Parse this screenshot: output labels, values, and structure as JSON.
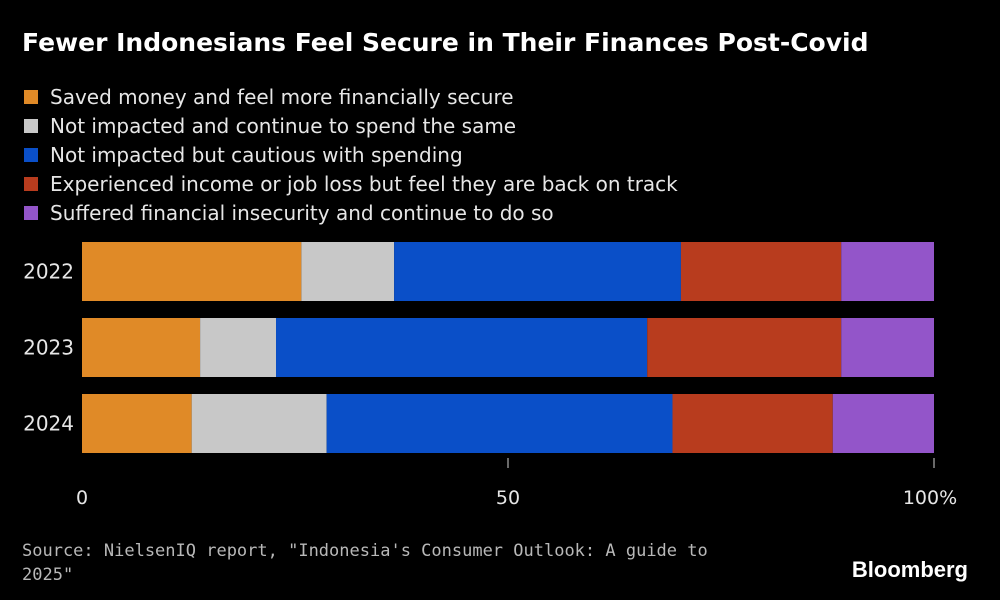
{
  "page": {
    "title": "Fewer Indonesians Feel Secure in Their Finances Post-Covid",
    "source": "Source: NielsenIQ report, \"Indonesia's Consumer Outlook: A guide to 2025\"",
    "brand": "Bloomberg"
  },
  "legend": [
    {
      "label": "Saved money and feel more financially secure",
      "color": "#e08a27"
    },
    {
      "label": "Not impacted and continue to spend the same",
      "color": "#c8c8c8"
    },
    {
      "label": "Not impacted but cautious with spending",
      "color": "#0a4fc8"
    },
    {
      "label": "Experienced income or job loss but feel they are back on track",
      "color": "#b83c1e"
    },
    {
      "label": "Suffered financial insecurity and continue to do so",
      "color": "#9355c9"
    }
  ],
  "chart_data": {
    "type": "bar",
    "orientation": "horizontal",
    "stacked": true,
    "categories": [
      "2022",
      "2023",
      "2024"
    ],
    "series": [
      {
        "name": "Saved money and feel more financially secure",
        "color": "#e08a27",
        "values": [
          26,
          14,
          13
        ]
      },
      {
        "name": "Not impacted and continue to spend the same",
        "color": "#c8c8c8",
        "values": [
          11,
          9,
          16
        ]
      },
      {
        "name": "Not impacted but cautious with spending",
        "color": "#0a4fc8",
        "values": [
          34,
          44,
          41
        ]
      },
      {
        "name": "Experienced income or job loss but feel they are back on track",
        "color": "#b83c1e",
        "values": [
          19,
          23,
          19
        ]
      },
      {
        "name": "Suffered financial insecurity and continue to do so",
        "color": "#9355c9",
        "values": [
          11,
          11,
          12
        ]
      }
    ],
    "xlim": [
      0,
      100
    ],
    "xticks": [
      {
        "value": 0,
        "label": "0"
      },
      {
        "value": 50,
        "label": "50"
      },
      {
        "value": 100,
        "label": "100%"
      }
    ],
    "xlabel": "",
    "ylabel": "",
    "grid": false,
    "legend_position": "top"
  }
}
